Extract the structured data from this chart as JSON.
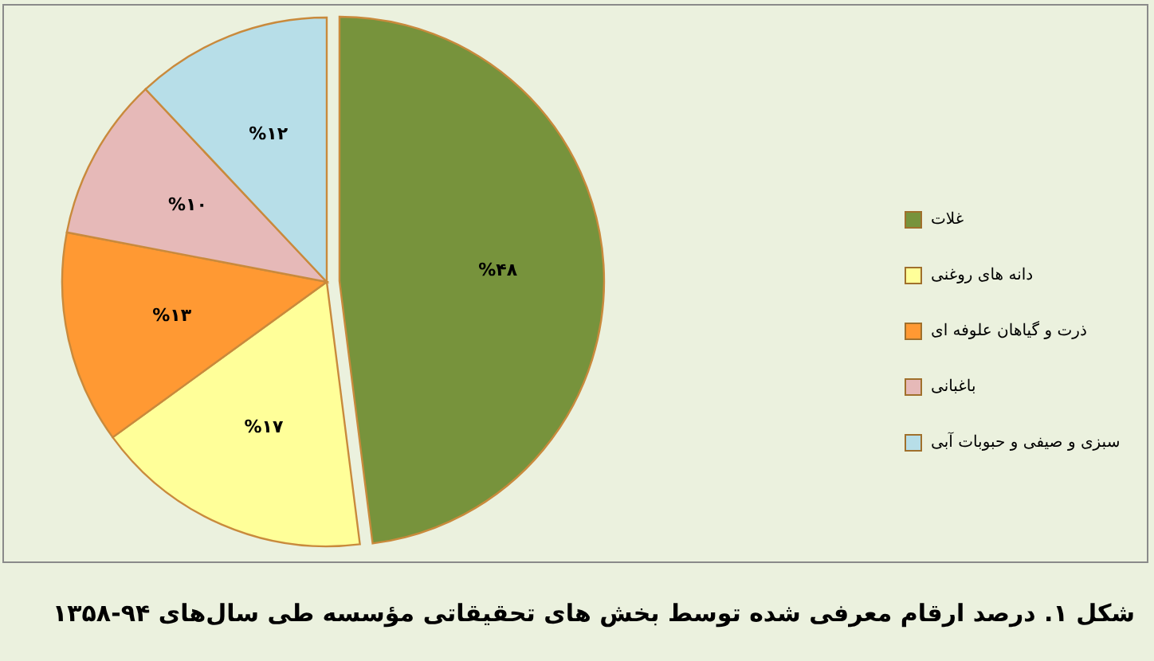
{
  "chart_data": {
    "type": "pie",
    "title": "شکل ۱. درصد ارقام معرفی شده توسط بخش های تحقیقاتی مؤسسه طی سال‌های ۹۴-۱۳۵۸",
    "categories": [
      "غلات",
      "دانه های روغنی",
      "ذرت و گیاهان علوفه ای",
      "باغبانی",
      "سبزی و صیفی و حبوبات آبی"
    ],
    "values": [
      48,
      17,
      13,
      10,
      12
    ],
    "colors": [
      "#77933c",
      "#ffff99",
      "#ff9933",
      "#e6b9b8",
      "#b7dee8"
    ],
    "value_labels": [
      "%۴۸",
      "%۱۷",
      "%۱۳",
      "%۱۰",
      "%۱۲"
    ],
    "legend": "right"
  }
}
